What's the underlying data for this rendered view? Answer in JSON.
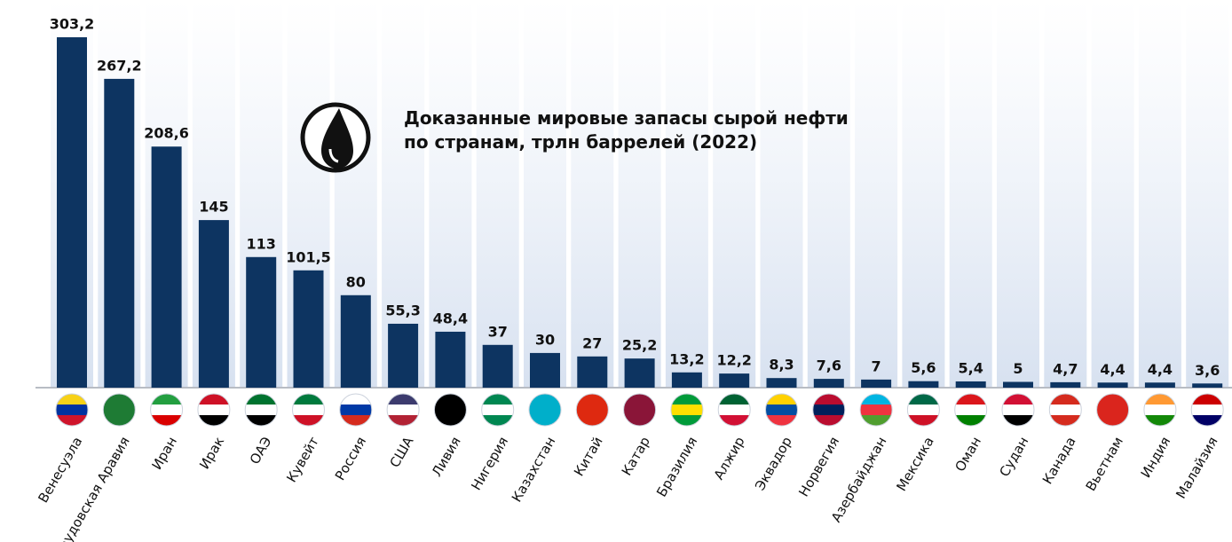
{
  "chart_data": {
    "type": "bar",
    "title": "Доказанные мировые запасы сырой нефти по странам, трлн баррелей (2022)",
    "categories": [
      "Венесуэла",
      "Саудовская Аравия",
      "Иран",
      "Ирак",
      "ОАЭ",
      "Кувейт",
      "Россия",
      "США",
      "Ливия",
      "Нигерия",
      "Казахстан",
      "Китай",
      "Катар",
      "Бразилия",
      "Алжир",
      "Эквадор",
      "Норвегия",
      "Азербайджан",
      "Мексика",
      "Оман",
      "Судан",
      "Канада",
      "Вьетнам",
      "Индия",
      "Малайзия"
    ],
    "values": [
      303.2,
      267.2,
      208.6,
      145,
      113,
      101.5,
      80,
      55.3,
      48.4,
      37,
      30,
      27,
      25.2,
      13.2,
      12.2,
      8.3,
      7.6,
      7,
      5.6,
      5.4,
      5,
      4.7,
      4.4,
      4.4,
      3.6
    ],
    "value_labels": [
      "303,2",
      "267,2",
      "208,6",
      "145",
      "113",
      "101,5",
      "80",
      "55,3",
      "48,4",
      "37",
      "30",
      "27",
      "25,2",
      "13,2",
      "12,2",
      "8,3",
      "7,6",
      "7",
      "5,6",
      "5,4",
      "5",
      "4,7",
      "4,4",
      "4,4",
      "3,6"
    ],
    "color": "#0d3461"
  }
}
